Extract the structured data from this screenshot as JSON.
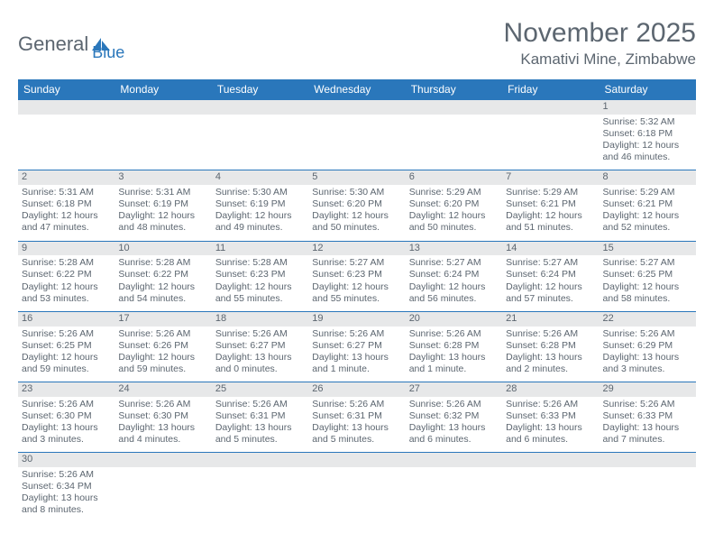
{
  "logo": {
    "text1": "General",
    "text2": "Blue"
  },
  "title": "November 2025",
  "location": "Kamativi Mine, Zimbabwe",
  "colors": {
    "header_bg": "#2a77bb",
    "header_text": "#ffffff",
    "daynum_bg": "#e7e8e9",
    "body_text": "#5c6670",
    "rule": "#2a77bb"
  },
  "weekdays": [
    "Sunday",
    "Monday",
    "Tuesday",
    "Wednesday",
    "Thursday",
    "Friday",
    "Saturday"
  ],
  "weeks": [
    [
      null,
      null,
      null,
      null,
      null,
      null,
      {
        "n": "1",
        "sr": "5:32 AM",
        "ss": "6:18 PM",
        "dl": "12 hours and 46 minutes."
      }
    ],
    [
      {
        "n": "2",
        "sr": "5:31 AM",
        "ss": "6:18 PM",
        "dl": "12 hours and 47 minutes."
      },
      {
        "n": "3",
        "sr": "5:31 AM",
        "ss": "6:19 PM",
        "dl": "12 hours and 48 minutes."
      },
      {
        "n": "4",
        "sr": "5:30 AM",
        "ss": "6:19 PM",
        "dl": "12 hours and 49 minutes."
      },
      {
        "n": "5",
        "sr": "5:30 AM",
        "ss": "6:20 PM",
        "dl": "12 hours and 50 minutes."
      },
      {
        "n": "6",
        "sr": "5:29 AM",
        "ss": "6:20 PM",
        "dl": "12 hours and 50 minutes."
      },
      {
        "n": "7",
        "sr": "5:29 AM",
        "ss": "6:21 PM",
        "dl": "12 hours and 51 minutes."
      },
      {
        "n": "8",
        "sr": "5:29 AM",
        "ss": "6:21 PM",
        "dl": "12 hours and 52 minutes."
      }
    ],
    [
      {
        "n": "9",
        "sr": "5:28 AM",
        "ss": "6:22 PM",
        "dl": "12 hours and 53 minutes."
      },
      {
        "n": "10",
        "sr": "5:28 AM",
        "ss": "6:22 PM",
        "dl": "12 hours and 54 minutes."
      },
      {
        "n": "11",
        "sr": "5:28 AM",
        "ss": "6:23 PM",
        "dl": "12 hours and 55 minutes."
      },
      {
        "n": "12",
        "sr": "5:27 AM",
        "ss": "6:23 PM",
        "dl": "12 hours and 55 minutes."
      },
      {
        "n": "13",
        "sr": "5:27 AM",
        "ss": "6:24 PM",
        "dl": "12 hours and 56 minutes."
      },
      {
        "n": "14",
        "sr": "5:27 AM",
        "ss": "6:24 PM",
        "dl": "12 hours and 57 minutes."
      },
      {
        "n": "15",
        "sr": "5:27 AM",
        "ss": "6:25 PM",
        "dl": "12 hours and 58 minutes."
      }
    ],
    [
      {
        "n": "16",
        "sr": "5:26 AM",
        "ss": "6:25 PM",
        "dl": "12 hours and 59 minutes."
      },
      {
        "n": "17",
        "sr": "5:26 AM",
        "ss": "6:26 PM",
        "dl": "12 hours and 59 minutes."
      },
      {
        "n": "18",
        "sr": "5:26 AM",
        "ss": "6:27 PM",
        "dl": "13 hours and 0 minutes."
      },
      {
        "n": "19",
        "sr": "5:26 AM",
        "ss": "6:27 PM",
        "dl": "13 hours and 1 minute."
      },
      {
        "n": "20",
        "sr": "5:26 AM",
        "ss": "6:28 PM",
        "dl": "13 hours and 1 minute."
      },
      {
        "n": "21",
        "sr": "5:26 AM",
        "ss": "6:28 PM",
        "dl": "13 hours and 2 minutes."
      },
      {
        "n": "22",
        "sr": "5:26 AM",
        "ss": "6:29 PM",
        "dl": "13 hours and 3 minutes."
      }
    ],
    [
      {
        "n": "23",
        "sr": "5:26 AM",
        "ss": "6:30 PM",
        "dl": "13 hours and 3 minutes."
      },
      {
        "n": "24",
        "sr": "5:26 AM",
        "ss": "6:30 PM",
        "dl": "13 hours and 4 minutes."
      },
      {
        "n": "25",
        "sr": "5:26 AM",
        "ss": "6:31 PM",
        "dl": "13 hours and 5 minutes."
      },
      {
        "n": "26",
        "sr": "5:26 AM",
        "ss": "6:31 PM",
        "dl": "13 hours and 5 minutes."
      },
      {
        "n": "27",
        "sr": "5:26 AM",
        "ss": "6:32 PM",
        "dl": "13 hours and 6 minutes."
      },
      {
        "n": "28",
        "sr": "5:26 AM",
        "ss": "6:33 PM",
        "dl": "13 hours and 6 minutes."
      },
      {
        "n": "29",
        "sr": "5:26 AM",
        "ss": "6:33 PM",
        "dl": "13 hours and 7 minutes."
      }
    ],
    [
      {
        "n": "30",
        "sr": "5:26 AM",
        "ss": "6:34 PM",
        "dl": "13 hours and 8 minutes."
      },
      null,
      null,
      null,
      null,
      null,
      null
    ]
  ],
  "labels": {
    "sunrise": "Sunrise:",
    "sunset": "Sunset:",
    "daylight": "Daylight:"
  }
}
